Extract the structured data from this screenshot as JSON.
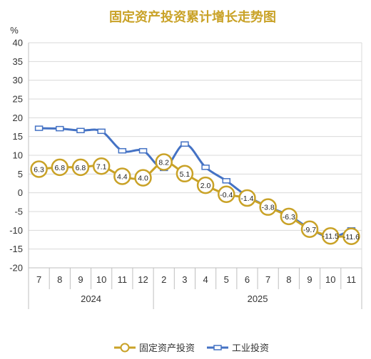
{
  "chart_data": {
    "type": "line",
    "title": "固定资产投资累计增长走势图",
    "unit_label": "%",
    "categories": [
      "7",
      "8",
      "9",
      "10",
      "11",
      "12",
      "2",
      "3",
      "4",
      "5",
      "6",
      "7",
      "8",
      "9",
      "10",
      "11"
    ],
    "year_groups": [
      {
        "label": "2024",
        "start": 0,
        "end": 5
      },
      {
        "label": "2025",
        "start": 6,
        "end": 15
      }
    ],
    "ylim": [
      -20,
      40
    ],
    "yticks": [
      -20,
      -15,
      -10,
      -5,
      0,
      5,
      10,
      15,
      20,
      25,
      30,
      35,
      40
    ],
    "grid": true,
    "legend_position": "bottom",
    "series": [
      {
        "name": "固定资产投资",
        "color": "#c9a227",
        "marker": "circle",
        "show_labels": true,
        "values": [
          6.3,
          6.8,
          6.8,
          7.1,
          4.4,
          4.0,
          8.2,
          5.1,
          2.0,
          -0.4,
          -1.4,
          -3.8,
          -6.3,
          -9.7,
          -11.5,
          -11.6
        ],
        "labels": [
          "6.3",
          "6.8",
          "6.8",
          "7.1",
          "4.4",
          "4.0",
          "8.2",
          "5.1",
          "2.0",
          "-0.4",
          "-1.4",
          "-3.8",
          "-6.3",
          "-9.7",
          "-11.5",
          "-11.6"
        ]
      },
      {
        "name": "工业投资",
        "color": "#4472c4",
        "marker": "square",
        "show_labels": false,
        "values": [
          17.2,
          17.1,
          16.6,
          16.4,
          11.2,
          11.2,
          6.5,
          13.0,
          6.8,
          3.2,
          -0.9,
          -3.7,
          -6.0,
          -9.5,
          -11.8,
          -9.9
        ]
      }
    ]
  }
}
